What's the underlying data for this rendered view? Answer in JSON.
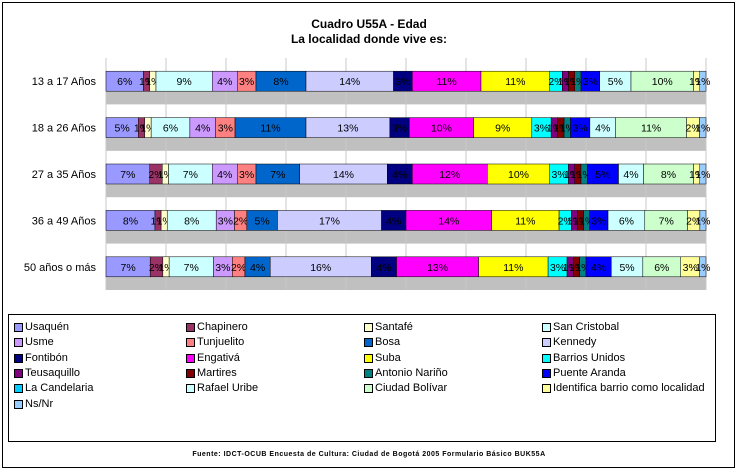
{
  "chart_data": {
    "type": "bar",
    "orientation": "horizontal",
    "stacked": true,
    "title": "Cuadro U55A - Edad",
    "subtitle": "La localidad donde vive es:",
    "source": "Fuente: IDCT-OCUB Encuesta de Cultura: Ciudad de Bogotá 2005 Formulario Básico BUK55A",
    "categories": [
      "13 a 17 Años",
      "18 a 26 Años",
      "27 a 35 Años",
      "36 a 49 Años",
      "50 años o más"
    ],
    "xlim": [
      0,
      100
    ],
    "grid": true,
    "legend_position": "bottom",
    "series": [
      {
        "name": "Usaquén",
        "color": "#9999ff",
        "values": [
          6,
          5,
          7,
          8,
          7
        ]
      },
      {
        "name": "Chapinero",
        "color": "#993366",
        "values": [
          1,
          1,
          2,
          1,
          2
        ]
      },
      {
        "name": "Santafé",
        "color": "#ffffcc",
        "values": [
          1,
          1,
          1,
          1,
          1
        ]
      },
      {
        "name": "San Cristobal",
        "color": "#ccffff",
        "values": [
          9,
          6,
          7,
          8,
          7
        ]
      },
      {
        "name": "Usme",
        "color": "#cc99ff",
        "values": [
          4,
          4,
          4,
          3,
          3
        ]
      },
      {
        "name": "Tunjuelito",
        "color": "#ff8080",
        "values": [
          3,
          3,
          3,
          2,
          2
        ]
      },
      {
        "name": "Bosa",
        "color": "#0066cc",
        "values": [
          8,
          11,
          7,
          5,
          4
        ]
      },
      {
        "name": "Kennedy",
        "color": "#ccccff",
        "values": [
          14,
          13,
          14,
          17,
          16
        ]
      },
      {
        "name": "Fontibón",
        "color": "#000080",
        "values": [
          3,
          3,
          4,
          4,
          4
        ]
      },
      {
        "name": "Engativá",
        "color": "#ff00ff",
        "values": [
          11,
          10,
          12,
          14,
          13
        ]
      },
      {
        "name": "Suba",
        "color": "#ffff00",
        "values": [
          11,
          9,
          10,
          11,
          11
        ]
      },
      {
        "name": "Barrios Unidos",
        "color": "#00ffff",
        "values": [
          2,
          3,
          3,
          2,
          3
        ]
      },
      {
        "name": "Teusaquillo",
        "color": "#800080",
        "values": [
          1,
          1,
          1,
          1,
          1
        ]
      },
      {
        "name": "Martires",
        "color": "#800000",
        "values": [
          1,
          1,
          1,
          1,
          1
        ]
      },
      {
        "name": "Antonio Nariño",
        "color": "#008080",
        "values": [
          1,
          1,
          1,
          1,
          1
        ]
      },
      {
        "name": "Puente Aranda",
        "color": "#0000ff",
        "values": [
          3,
          3,
          5,
          3,
          4
        ]
      },
      {
        "name": "La Candelaria",
        "color": "#00ccff",
        "values": [
          0,
          0,
          0,
          0,
          0
        ]
      },
      {
        "name": "Rafael Uribe",
        "color": "#ccffff",
        "values": [
          5,
          4,
          4,
          6,
          5
        ]
      },
      {
        "name": "Ciudad Bolívar",
        "color": "#ccffcc",
        "values": [
          10,
          11,
          8,
          7,
          6
        ]
      },
      {
        "name": "Identifica barrio como localidad",
        "color": "#ffff99",
        "values": [
          1,
          2,
          1,
          2,
          3
        ]
      },
      {
        "name": "Ns/Nr",
        "color": "#99ccff",
        "values": [
          1,
          1,
          1,
          1,
          1
        ]
      }
    ],
    "segment_labels": [
      [
        "6%",
        "1%",
        "1%",
        "9%",
        "4%",
        "3%",
        "8%",
        "14%",
        "3%",
        "11%",
        "11%",
        "2%",
        "1%",
        "1%",
        "1%",
        "3%",
        "0%",
        "5%",
        "10%",
        "1%",
        "1%"
      ],
      [
        "5%",
        "1%",
        "1%",
        "6%",
        "4%",
        "3%",
        "11%",
        "13%",
        "3%",
        "10%",
        "9%",
        "3%",
        "1%",
        "1%",
        "1%",
        "3%",
        "0%",
        "4%",
        "11%",
        "2%",
        "1%"
      ],
      [
        "7%",
        "2%",
        "1%",
        "7%",
        "4%",
        "3%",
        "7%",
        "14%",
        "4%",
        "12%",
        "10%",
        "3%",
        "1%",
        "1%",
        "1%",
        "5%",
        "0%",
        "4%",
        "8%",
        "1%",
        "1%"
      ],
      [
        "8%",
        "1%",
        "1%",
        "8%",
        "3%",
        "2%",
        "5%",
        "17%",
        "4%",
        "14%",
        "11%",
        "2%",
        "1%",
        "1%",
        "1%",
        "3%",
        "0%",
        "6%",
        "7%",
        "2%",
        "1%"
      ],
      [
        "7%",
        "2%",
        "1%",
        "7%",
        "3%",
        "2%",
        "4%",
        "16%",
        "4%",
        "13%",
        "11%",
        "3%",
        "1%",
        "1%",
        "1%",
        "4%",
        "0%",
        "5%",
        "6%",
        "3%",
        "1%"
      ]
    ]
  }
}
